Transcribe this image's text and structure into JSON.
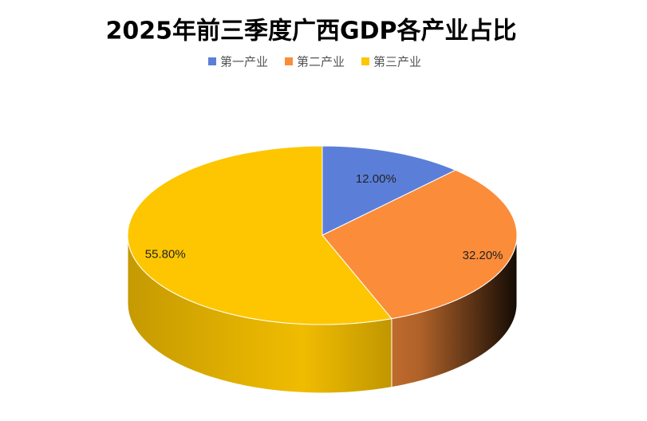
{
  "chart_data": {
    "type": "pie",
    "title": "2025年前三季度广西GDP各产业占比",
    "categories": [
      "第一产业",
      "第二产业",
      "第三产业"
    ],
    "values": [
      12.0,
      32.2,
      55.8
    ],
    "value_labels": [
      "12.00%",
      "32.20%",
      "55.80%"
    ],
    "colors": [
      "#5b7fd9",
      "#fb8c3a",
      "#fdc601"
    ],
    "legend": "top"
  }
}
